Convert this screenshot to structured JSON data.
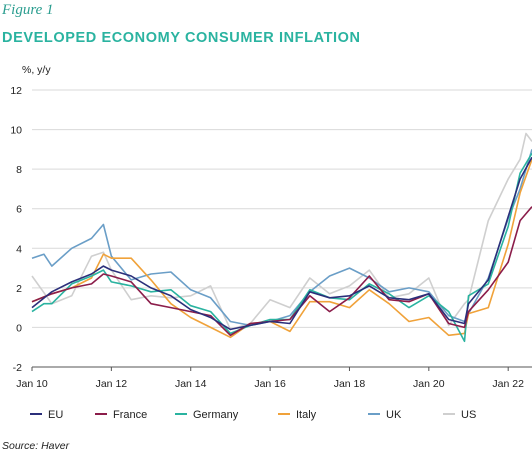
{
  "figure_label": "Figure 1",
  "title": "DEVELOPED ECONOMY CONSUMER INFLATION",
  "source": "Source: Haver",
  "chart_data": {
    "type": "line",
    "ylabel": "%, y/y",
    "ylim": [
      -2,
      12
    ],
    "yticks": [
      -2,
      0,
      2,
      4,
      6,
      8,
      10,
      12
    ],
    "xlim": [
      2010.0,
      2022.6
    ],
    "xticks": [
      {
        "value": 2010,
        "label": "Jan 10"
      },
      {
        "value": 2012,
        "label": "Jan 12"
      },
      {
        "value": 2014,
        "label": "Jan 14"
      },
      {
        "value": 2016,
        "label": "Jan 16"
      },
      {
        "value": 2018,
        "label": "Jan 18"
      },
      {
        "value": 2020,
        "label": "Jan 20"
      },
      {
        "value": 2022,
        "label": "Jan 22"
      }
    ],
    "grid": "horizontal",
    "legend": "bottom",
    "series": [
      {
        "name": "EU",
        "color": "#2b2f7a",
        "data": [
          [
            2010.0,
            1.0
          ],
          [
            2010.5,
            1.8
          ],
          [
            2011.0,
            2.3
          ],
          [
            2011.5,
            2.7
          ],
          [
            2011.8,
            3.1
          ],
          [
            2012.0,
            2.9
          ],
          [
            2012.5,
            2.6
          ],
          [
            2013.0,
            2.0
          ],
          [
            2013.5,
            1.6
          ],
          [
            2014.0,
            0.9
          ],
          [
            2014.5,
            0.5
          ],
          [
            2015.0,
            -0.1
          ],
          [
            2015.5,
            0.1
          ],
          [
            2016.0,
            0.3
          ],
          [
            2016.5,
            0.2
          ],
          [
            2017.0,
            1.8
          ],
          [
            2017.5,
            1.5
          ],
          [
            2018.0,
            1.6
          ],
          [
            2018.5,
            2.1
          ],
          [
            2019.0,
            1.5
          ],
          [
            2019.5,
            1.4
          ],
          [
            2020.0,
            1.7
          ],
          [
            2020.5,
            0.4
          ],
          [
            2020.9,
            0.2
          ],
          [
            2021.0,
            1.2
          ],
          [
            2021.5,
            2.4
          ],
          [
            2022.0,
            5.6
          ],
          [
            2022.3,
            7.5
          ],
          [
            2022.6,
            8.6
          ]
        ]
      },
      {
        "name": "France",
        "color": "#8b1d4a",
        "data": [
          [
            2010.0,
            1.3
          ],
          [
            2010.5,
            1.7
          ],
          [
            2011.0,
            2.0
          ],
          [
            2011.5,
            2.2
          ],
          [
            2011.8,
            2.7
          ],
          [
            2012.0,
            2.6
          ],
          [
            2012.5,
            2.3
          ],
          [
            2013.0,
            1.2
          ],
          [
            2013.5,
            1.0
          ],
          [
            2014.0,
            0.8
          ],
          [
            2014.5,
            0.6
          ],
          [
            2015.0,
            -0.4
          ],
          [
            2015.5,
            0.2
          ],
          [
            2016.0,
            0.3
          ],
          [
            2016.5,
            0.4
          ],
          [
            2017.0,
            1.6
          ],
          [
            2017.5,
            0.8
          ],
          [
            2018.0,
            1.5
          ],
          [
            2018.5,
            2.6
          ],
          [
            2019.0,
            1.4
          ],
          [
            2019.5,
            1.3
          ],
          [
            2020.0,
            1.7
          ],
          [
            2020.5,
            0.2
          ],
          [
            2020.9,
            0.0
          ],
          [
            2021.0,
            0.8
          ],
          [
            2021.5,
            1.9
          ],
          [
            2022.0,
            3.3
          ],
          [
            2022.3,
            5.4
          ],
          [
            2022.6,
            6.1
          ]
        ]
      },
      {
        "name": "Germany",
        "color": "#2ab3a0",
        "data": [
          [
            2010.0,
            0.8
          ],
          [
            2010.3,
            1.2
          ],
          [
            2010.5,
            1.2
          ],
          [
            2011.0,
            2.2
          ],
          [
            2011.5,
            2.6
          ],
          [
            2011.8,
            2.9
          ],
          [
            2012.0,
            2.3
          ],
          [
            2012.5,
            2.1
          ],
          [
            2013.0,
            1.8
          ],
          [
            2013.5,
            1.9
          ],
          [
            2014.0,
            1.1
          ],
          [
            2014.5,
            0.8
          ],
          [
            2015.0,
            -0.3
          ],
          [
            2015.5,
            0.1
          ],
          [
            2016.0,
            0.4
          ],
          [
            2016.5,
            0.4
          ],
          [
            2017.0,
            1.9
          ],
          [
            2017.5,
            1.5
          ],
          [
            2018.0,
            1.4
          ],
          [
            2018.5,
            2.2
          ],
          [
            2019.0,
            1.7
          ],
          [
            2019.5,
            1.0
          ],
          [
            2020.0,
            1.6
          ],
          [
            2020.5,
            0.8
          ],
          [
            2020.9,
            -0.7
          ],
          [
            2021.0,
            1.6
          ],
          [
            2021.5,
            2.2
          ],
          [
            2022.0,
            5.1
          ],
          [
            2022.3,
            7.8
          ],
          [
            2022.6,
            8.8
          ]
        ]
      },
      {
        "name": "Italy",
        "color": "#f0a23a",
        "data": [
          [
            2010.0,
            1.3
          ],
          [
            2010.5,
            1.7
          ],
          [
            2011.0,
            2.0
          ],
          [
            2011.5,
            2.5
          ],
          [
            2011.8,
            3.7
          ],
          [
            2012.0,
            3.5
          ],
          [
            2012.5,
            3.5
          ],
          [
            2013.0,
            2.4
          ],
          [
            2013.5,
            1.2
          ],
          [
            2014.0,
            0.5
          ],
          [
            2014.5,
            0.0
          ],
          [
            2015.0,
            -0.5
          ],
          [
            2015.5,
            0.2
          ],
          [
            2016.0,
            0.3
          ],
          [
            2016.5,
            -0.2
          ],
          [
            2017.0,
            1.3
          ],
          [
            2017.5,
            1.3
          ],
          [
            2018.0,
            1.0
          ],
          [
            2018.5,
            1.9
          ],
          [
            2019.0,
            1.2
          ],
          [
            2019.5,
            0.3
          ],
          [
            2020.0,
            0.5
          ],
          [
            2020.5,
            -0.4
          ],
          [
            2020.9,
            -0.3
          ],
          [
            2021.0,
            0.7
          ],
          [
            2021.5,
            1.0
          ],
          [
            2022.0,
            4.2
          ],
          [
            2022.3,
            6.8
          ],
          [
            2022.6,
            8.5
          ]
        ]
      },
      {
        "name": "UK",
        "color": "#6a9ec7",
        "data": [
          [
            2010.0,
            3.5
          ],
          [
            2010.3,
            3.7
          ],
          [
            2010.5,
            3.1
          ],
          [
            2011.0,
            4.0
          ],
          [
            2011.5,
            4.5
          ],
          [
            2011.8,
            5.2
          ],
          [
            2012.0,
            3.6
          ],
          [
            2012.5,
            2.4
          ],
          [
            2013.0,
            2.7
          ],
          [
            2013.5,
            2.8
          ],
          [
            2014.0,
            1.9
          ],
          [
            2014.5,
            1.5
          ],
          [
            2015.0,
            0.3
          ],
          [
            2015.5,
            0.1
          ],
          [
            2016.0,
            0.3
          ],
          [
            2016.5,
            0.6
          ],
          [
            2017.0,
            1.8
          ],
          [
            2017.5,
            2.6
          ],
          [
            2018.0,
            3.0
          ],
          [
            2018.5,
            2.5
          ],
          [
            2019.0,
            1.8
          ],
          [
            2019.5,
            2.0
          ],
          [
            2020.0,
            1.8
          ],
          [
            2020.5,
            0.6
          ],
          [
            2020.9,
            0.3
          ],
          [
            2021.0,
            0.7
          ],
          [
            2021.5,
            2.5
          ],
          [
            2022.0,
            5.5
          ],
          [
            2022.3,
            7.0
          ],
          [
            2022.6,
            9.0
          ]
        ]
      },
      {
        "name": "US",
        "color": "#cfcfcf",
        "data": [
          [
            2010.0,
            2.6
          ],
          [
            2010.5,
            1.2
          ],
          [
            2011.0,
            1.6
          ],
          [
            2011.5,
            3.6
          ],
          [
            2011.8,
            3.8
          ],
          [
            2012.0,
            2.9
          ],
          [
            2012.5,
            1.4
          ],
          [
            2013.0,
            1.6
          ],
          [
            2013.5,
            1.5
          ],
          [
            2014.0,
            1.6
          ],
          [
            2014.5,
            2.1
          ],
          [
            2015.0,
            -0.1
          ],
          [
            2015.5,
            0.2
          ],
          [
            2016.0,
            1.4
          ],
          [
            2016.5,
            1.0
          ],
          [
            2017.0,
            2.5
          ],
          [
            2017.5,
            1.7
          ],
          [
            2018.0,
            2.1
          ],
          [
            2018.5,
            2.9
          ],
          [
            2019.0,
            1.5
          ],
          [
            2019.5,
            1.7
          ],
          [
            2020.0,
            2.5
          ],
          [
            2020.5,
            0.1
          ],
          [
            2020.9,
            1.2
          ],
          [
            2021.0,
            1.4
          ],
          [
            2021.5,
            5.4
          ],
          [
            2022.0,
            7.5
          ],
          [
            2022.3,
            8.5
          ],
          [
            2022.45,
            9.8
          ],
          [
            2022.6,
            9.4
          ]
        ]
      }
    ]
  }
}
